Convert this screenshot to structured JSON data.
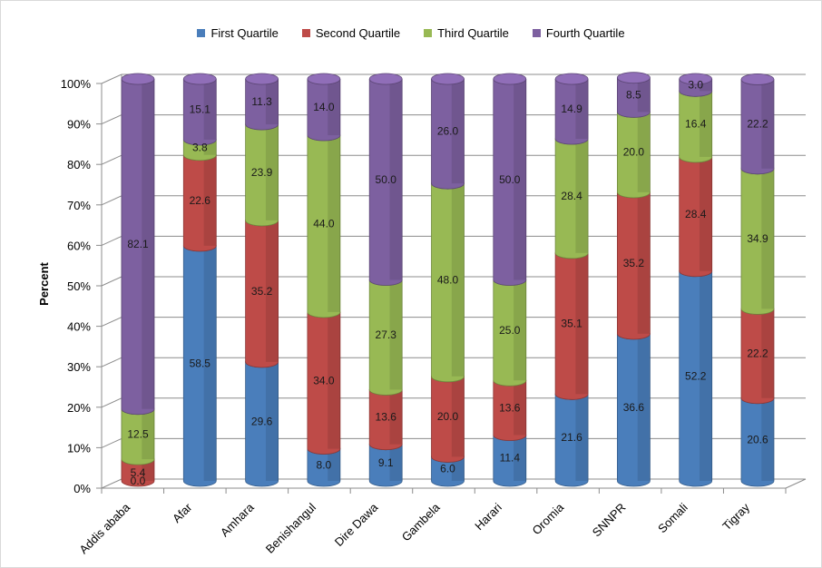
{
  "chart_data": {
    "type": "bar",
    "stacked": true,
    "percent_stacked": true,
    "three_d": true,
    "title": "",
    "xlabel": "",
    "ylabel": "Percent",
    "ylim": [
      0,
      100
    ],
    "y_ticks": [
      "0%",
      "10%",
      "20%",
      "30%",
      "40%",
      "50%",
      "60%",
      "70%",
      "80%",
      "90%",
      "100%"
    ],
    "grid": true,
    "legend_position": "top",
    "categories": [
      "Addis ababa",
      "Afar",
      "Amhara",
      "Benishangul",
      "Dire Dawa",
      "Gambela",
      "Harari",
      "Oromia",
      "SNNPR",
      "Somali",
      "Tigray"
    ],
    "series": [
      {
        "name": "First Quartile",
        "color": "#4a7ebb",
        "values": [
          0.0,
          58.5,
          29.6,
          8.0,
          9.1,
          6.0,
          11.4,
          21.6,
          36.6,
          52.2,
          20.6
        ]
      },
      {
        "name": "Second Quartile",
        "color": "#be4b48",
        "values": [
          5.4,
          22.6,
          35.2,
          34.0,
          13.6,
          20.0,
          13.6,
          35.1,
          35.2,
          28.4,
          22.2
        ]
      },
      {
        "name": "Third Quartile",
        "color": "#98b954",
        "values": [
          12.5,
          3.8,
          23.9,
          44.0,
          27.3,
          48.0,
          25.0,
          28.4,
          20.0,
          16.4,
          34.9
        ]
      },
      {
        "name": "Fourth Quartile",
        "color": "#7d60a0",
        "values": [
          82.1,
          15.1,
          11.3,
          14.0,
          50.0,
          26.0,
          50.0,
          14.9,
          8.5,
          3.0,
          22.2
        ]
      }
    ],
    "value_labels": [
      [
        "0.0",
        "58.5",
        "29.6",
        "8.0",
        "9.1",
        "6.0",
        "11.4",
        "21.6",
        "36.6",
        "52.2",
        "20.6"
      ],
      [
        "5.4",
        "22.6",
        "35.2",
        "34.0",
        "13.6",
        "20.0",
        "13.6",
        "35.1",
        "35.2",
        "28.4",
        "22.2"
      ],
      [
        "12.5",
        "3.8",
        "23.9",
        "44.0",
        "27.3",
        "48.0",
        "25.0",
        "28.4",
        "20.0",
        "16.4",
        "34.9"
      ],
      [
        "82.1",
        "15.1",
        "11.3",
        "14.0",
        "50.0",
        "26.0",
        "50.0",
        "14.9",
        "8.5",
        "3.0",
        "22.2"
      ]
    ]
  }
}
